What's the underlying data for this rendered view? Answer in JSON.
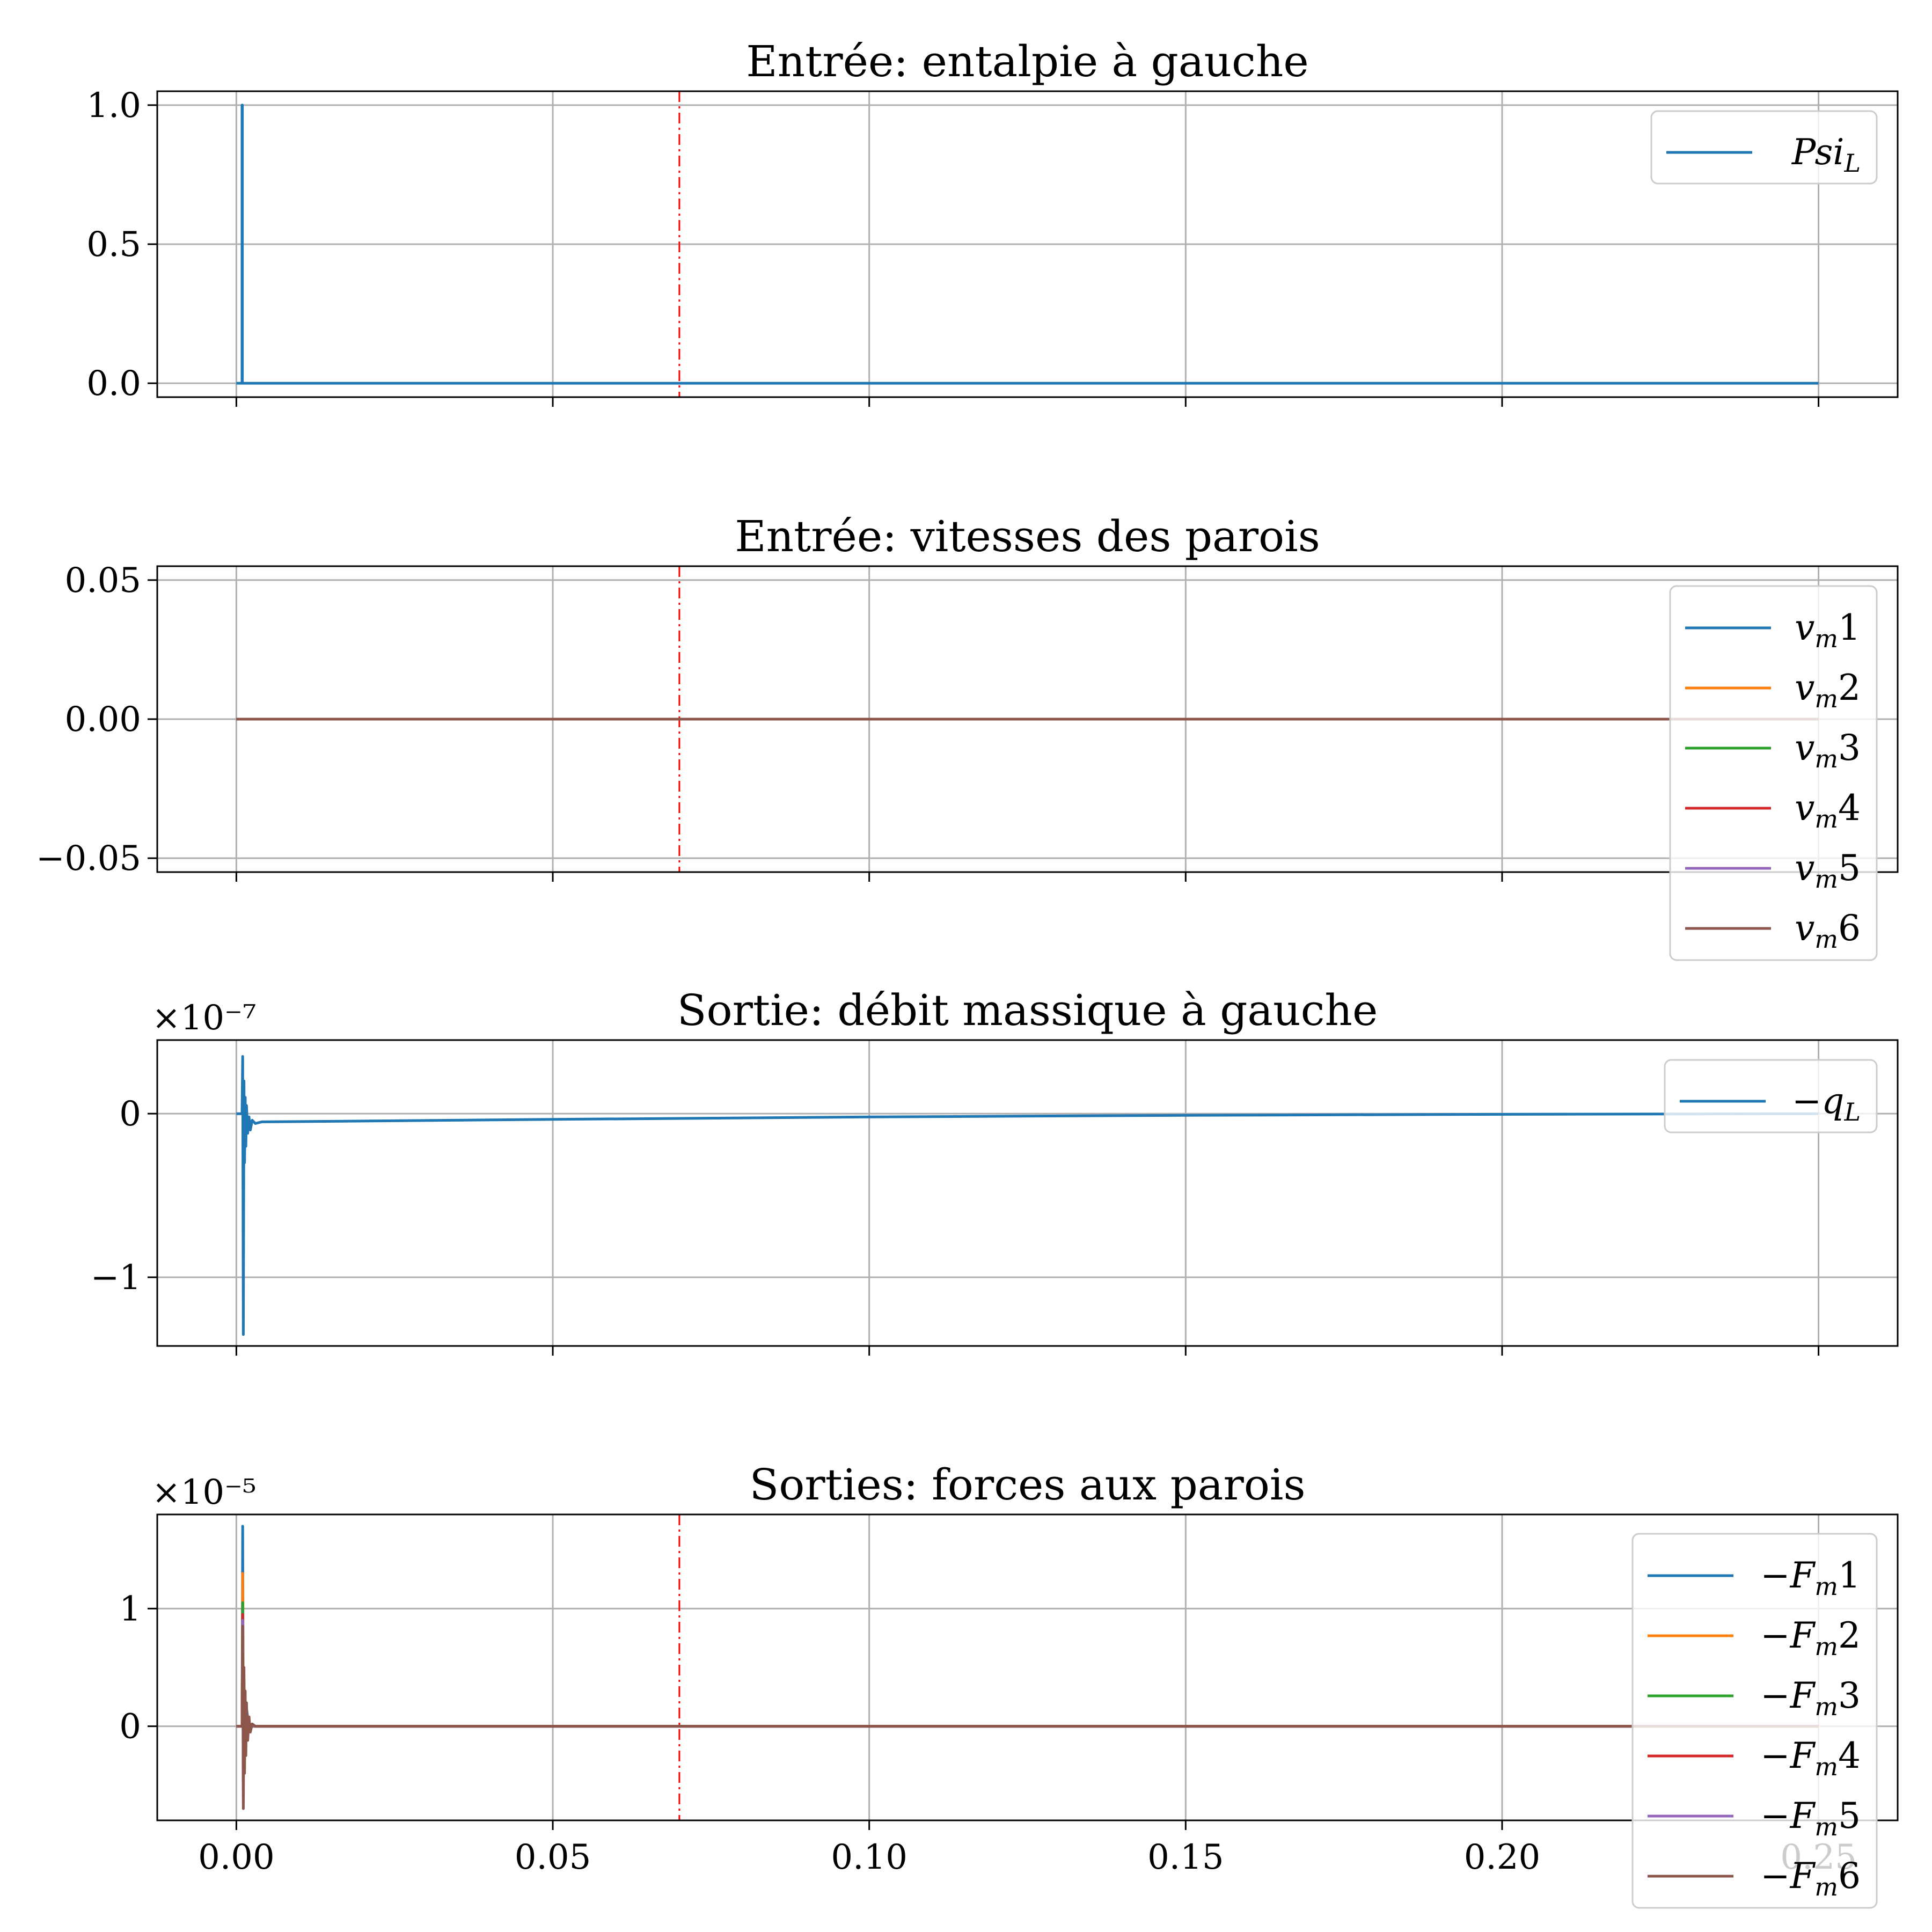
{
  "figure": {
    "shared_x_ticks": [
      "0.00",
      "0.05",
      "0.10",
      "0.15",
      "0.20",
      "0.25"
    ]
  },
  "colors": {
    "c1": "#1f77b4",
    "c2": "#ff7f0e",
    "c3": "#2ca02c",
    "c4": "#d62728",
    "c5": "#9467bd",
    "c6": "#8c564b",
    "grid": "#b0b0b0",
    "marker": "#ff0000"
  },
  "chart_data": [
    {
      "type": "line",
      "title": "Entrée: entalpie à gauche",
      "xlim": [
        -0.0125,
        0.2625
      ],
      "ylim": [
        -0.05,
        1.05
      ],
      "yticks": [
        {
          "v": 0,
          "label": "0.0"
        },
        {
          "v": 0.5,
          "label": "0.5"
        },
        {
          "v": 1,
          "label": "1.0"
        }
      ],
      "offset_text": "",
      "vline_x": 0.07,
      "legend_position": "top-right",
      "series": [
        {
          "name": "Psi",
          "sub": "L",
          "color": "#1f77b4",
          "x": [
            0,
            0.0009,
            0.0009,
            0.00095,
            0.00095,
            0.25
          ],
          "y": [
            0,
            0,
            1,
            1,
            0,
            0
          ]
        }
      ]
    },
    {
      "type": "line",
      "title": "Entrée: vitesses des parois",
      "xlim": [
        -0.0125,
        0.2625
      ],
      "ylim": [
        -0.055,
        0.055
      ],
      "yticks": [
        {
          "v": -0.05,
          "label": "−0.05"
        },
        {
          "v": 0,
          "label": "0.00"
        },
        {
          "v": 0.05,
          "label": "0.05"
        }
      ],
      "offset_text": "",
      "vline_x": 0.07,
      "legend_position": "right",
      "series": [
        {
          "name": "v",
          "sub": "m",
          "suffix": "1",
          "color": "#1f77b4",
          "x": [
            0,
            0.25
          ],
          "y": [
            0,
            0
          ]
        },
        {
          "name": "v",
          "sub": "m",
          "suffix": "2",
          "color": "#ff7f0e",
          "x": [
            0,
            0.25
          ],
          "y": [
            0,
            0
          ]
        },
        {
          "name": "v",
          "sub": "m",
          "suffix": "3",
          "color": "#2ca02c",
          "x": [
            0,
            0.25
          ],
          "y": [
            0,
            0
          ]
        },
        {
          "name": "v",
          "sub": "m",
          "suffix": "4",
          "color": "#d62728",
          "x": [
            0,
            0.25
          ],
          "y": [
            0,
            0
          ]
        },
        {
          "name": "v",
          "sub": "m",
          "suffix": "5",
          "color": "#9467bd",
          "x": [
            0,
            0.25
          ],
          "y": [
            0,
            0
          ]
        },
        {
          "name": "v",
          "sub": "m",
          "suffix": "6",
          "color": "#8c564b",
          "x": [
            0,
            0.25
          ],
          "y": [
            0,
            0
          ]
        }
      ]
    },
    {
      "type": "line",
      "title": "Sortie: débit massique à gauche",
      "xlim": [
        -0.0125,
        0.2625
      ],
      "ylim": [
        -1.42,
        0.45
      ],
      "yticks": [
        {
          "v": -1,
          "label": "−1"
        },
        {
          "v": 0,
          "label": "0"
        }
      ],
      "offset_text": "×10⁻⁷",
      "vline_x": null,
      "legend_position": "top-right",
      "series": [
        {
          "name": "−q",
          "sub": "L",
          "color": "#1f77b4",
          "x": [
            0,
            0.0009,
            0.001,
            0.0011,
            0.0012,
            0.0013,
            0.0014,
            0.0015,
            0.0016,
            0.0018,
            0.002,
            0.0022,
            0.0025,
            0.003,
            0.004,
            0.02,
            0.05,
            0.1,
            0.15,
            0.2,
            0.25
          ],
          "y": [
            0,
            0,
            0.35,
            -1.35,
            0.2,
            -0.3,
            0.1,
            -0.2,
            0.05,
            -0.12,
            -0.02,
            -0.1,
            -0.04,
            -0.06,
            -0.05,
            -0.045,
            -0.035,
            -0.02,
            -0.01,
            -0.004,
            0
          ]
        }
      ]
    },
    {
      "type": "line",
      "title": "Sorties: forces aux parois",
      "xlim": [
        -0.0125,
        0.2625
      ],
      "ylim": [
        -0.8,
        1.8
      ],
      "yticks": [
        {
          "v": 0,
          "label": "0"
        },
        {
          "v": 1,
          "label": "1"
        }
      ],
      "offset_text": "×10⁻⁵",
      "vline_x": 0.07,
      "legend_position": "right",
      "series": [
        {
          "name": "−F",
          "sub": "m",
          "suffix": "1",
          "color": "#1f77b4",
          "x": [
            0,
            0.0009,
            0.001,
            0.0011,
            0.0012,
            0.0014,
            0.0016,
            0.002,
            0.003,
            0.25
          ],
          "y": [
            0,
            0,
            1.7,
            -0.3,
            0.4,
            -0.1,
            0.15,
            0,
            0,
            0
          ]
        },
        {
          "name": "−F",
          "sub": "m",
          "suffix": "2",
          "color": "#ff7f0e",
          "x": [
            0,
            0.0009,
            0.001,
            0.0011,
            0.0012,
            0.0014,
            0.0016,
            0.002,
            0.003,
            0.25
          ],
          "y": [
            0,
            0,
            1.3,
            -0.35,
            0.35,
            -0.1,
            0.12,
            0,
            0,
            0
          ]
        },
        {
          "name": "−F",
          "sub": "m",
          "suffix": "3",
          "color": "#2ca02c",
          "x": [
            0,
            0.0009,
            0.001,
            0.0011,
            0.0012,
            0.0014,
            0.0016,
            0.002,
            0.003,
            0.25
          ],
          "y": [
            0,
            0,
            1.05,
            -0.4,
            0.3,
            -0.12,
            0.1,
            0,
            0,
            0
          ]
        },
        {
          "name": "−F",
          "sub": "m",
          "suffix": "4",
          "color": "#d62728",
          "x": [
            0,
            0.0009,
            0.001,
            0.0011,
            0.0012,
            0.0014,
            0.0016,
            0.002,
            0.003,
            0.25
          ],
          "y": [
            0,
            0,
            0.95,
            -0.5,
            0.3,
            -0.15,
            0.1,
            0,
            0,
            0
          ]
        },
        {
          "name": "−F",
          "sub": "m",
          "suffix": "5",
          "color": "#9467bd",
          "x": [
            0,
            0.0009,
            0.001,
            0.0011,
            0.0012,
            0.0014,
            0.0016,
            0.002,
            0.003,
            0.25
          ],
          "y": [
            0,
            0,
            0.9,
            -0.6,
            0.3,
            -0.2,
            0.1,
            0,
            0,
            0
          ]
        },
        {
          "name": "−F",
          "sub": "m",
          "suffix": "6",
          "color": "#8c564b",
          "x": [
            0,
            0.0009,
            0.001,
            0.0011,
            0.0012,
            0.0013,
            0.0014,
            0.0015,
            0.0016,
            0.0018,
            0.002,
            0.0022,
            0.0025,
            0.003,
            0.25
          ],
          "y": [
            0,
            0,
            0.85,
            -0.7,
            0.5,
            -0.4,
            0.3,
            -0.25,
            0.2,
            -0.12,
            0.08,
            -0.05,
            0.02,
            0,
            0
          ]
        }
      ]
    }
  ]
}
